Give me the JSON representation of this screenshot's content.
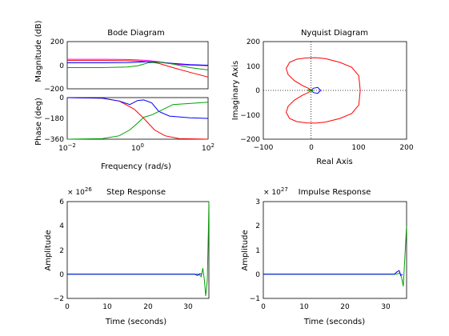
{
  "colors": {
    "red": "#ff0000",
    "green": "#00a000",
    "blue": "#0000ff",
    "magenta": "#ff00ff",
    "dark": "#000000"
  },
  "bode": {
    "title": "Bode Diagram",
    "ylabel_mag": "Magnitude (dB)",
    "ylabel_phase": "Phase (deg)",
    "xlabel": "Frequency  (rad/s)",
    "mag_ticks": [
      "200",
      "0",
      "−200"
    ],
    "phase_ticks": [
      "0",
      "−180",
      "−360"
    ],
    "x_ticks": [
      {
        "base": "10",
        "exp": "−2"
      },
      {
        "base": "10",
        "exp": "0"
      },
      {
        "base": "10",
        "exp": "2"
      }
    ]
  },
  "nyquist": {
    "title": "Nyquist Diagram",
    "xlabel": "Real Axis",
    "ylabel": "Imaginary Axis",
    "x_ticks": [
      "−100",
      "0",
      "100",
      "200"
    ],
    "y_ticks": [
      "200",
      "100",
      "0",
      "−100",
      "−200"
    ]
  },
  "step": {
    "title": "Step Response",
    "xlabel": "Time (seconds)",
    "ylabel": "Amplitude",
    "scale_base": "× 10",
    "scale_exp": "26",
    "x_ticks": [
      "0",
      "10",
      "20",
      "30"
    ],
    "y_ticks": [
      "6",
      "4",
      "2",
      "0",
      "−2"
    ]
  },
  "impulse": {
    "title": "Impulse Response",
    "xlabel": "Time (seconds)",
    "ylabel": "Amplitude",
    "scale_base": "× 10",
    "scale_exp": "27",
    "x_ticks": [
      "0",
      "10",
      "20",
      "30"
    ],
    "y_ticks": [
      "3",
      "2",
      "1",
      "0",
      "−1"
    ]
  },
  "chart_data": [
    {
      "type": "line",
      "title": "Bode Diagram",
      "xlabel": "Frequency  (rad/s)",
      "ylabel": "Magnitude (dB)",
      "xscale": "log",
      "xlim": [
        0.01,
        100
      ],
      "ylim": [
        -200,
        200
      ],
      "series": [
        {
          "color": "red",
          "x": [
            0.01,
            0.1,
            0.5,
            1,
            2,
            4,
            10,
            30,
            100
          ],
          "y": [
            40,
            40,
            38,
            35,
            30,
            15,
            -20,
            -60,
            -100
          ]
        },
        {
          "color": "magenta",
          "x": [
            0.01,
            0.1,
            0.5,
            1,
            2,
            4,
            10,
            30,
            100
          ],
          "y": [
            50,
            50,
            48,
            45,
            40,
            30,
            10,
            0,
            -5
          ]
        },
        {
          "color": "blue",
          "x": [
            0.01,
            0.1,
            0.5,
            1,
            2,
            4,
            10,
            30,
            100
          ],
          "y": [
            20,
            20,
            22,
            25,
            30,
            25,
            15,
            5,
            0
          ]
        },
        {
          "color": "green",
          "x": [
            0.01,
            0.1,
            0.5,
            1,
            2,
            4,
            10,
            30,
            100
          ],
          "y": [
            -20,
            -20,
            -15,
            -5,
            20,
            25,
            10,
            -20,
            -40
          ]
        }
      ]
    },
    {
      "type": "line",
      "title": "",
      "xlabel": "Frequency  (rad/s)",
      "ylabel": "Phase (deg)",
      "xscale": "log",
      "xlim": [
        0.01,
        100
      ],
      "ylim": [
        -360,
        0
      ],
      "series": [
        {
          "color": "red",
          "x": [
            0.01,
            0.1,
            0.3,
            0.8,
            1.5,
            3,
            6,
            15,
            100
          ],
          "y": [
            0,
            -5,
            -30,
            -100,
            -180,
            -280,
            -330,
            -355,
            -360
          ]
        },
        {
          "color": "blue",
          "x": [
            0.01,
            0.1,
            0.3,
            0.6,
            1,
            1.5,
            2.5,
            4,
            8,
            30,
            100
          ],
          "y": [
            0,
            -5,
            -30,
            -60,
            -25,
            -20,
            -45,
            -120,
            -160,
            -175,
            -180
          ]
        },
        {
          "color": "green",
          "x": [
            0.01,
            0.1,
            0.3,
            0.6,
            1,
            1.5,
            2.5,
            4,
            10,
            100
          ],
          "y": [
            -360,
            -355,
            -330,
            -280,
            -220,
            -170,
            -150,
            -120,
            -60,
            -40
          ]
        }
      ]
    },
    {
      "type": "line",
      "title": "Nyquist Diagram",
      "xlabel": "Real Axis",
      "ylabel": "Imaginary Axis",
      "xlim": [
        -100,
        200
      ],
      "ylim": [
        -200,
        200
      ],
      "grid": "zero-lines dotted",
      "series": [
        {
          "color": "red",
          "x": [
            0,
            -5,
            -18,
            -35,
            -48,
            -52,
            -45,
            -30,
            -10,
            10,
            30,
            60,
            85,
            100,
            103,
            100,
            85,
            60,
            30,
            10,
            -10,
            -30,
            -45,
            -52,
            -48,
            -35,
            -18,
            -5,
            0
          ],
          "y": [
            0,
            8,
            20,
            40,
            65,
            90,
            115,
            128,
            133,
            134,
            130,
            115,
            95,
            60,
            0,
            -60,
            -95,
            -115,
            -130,
            -134,
            -133,
            -128,
            -115,
            -90,
            -65,
            -40,
            -20,
            -8,
            0
          ]
        },
        {
          "color": "blue",
          "x": [
            0,
            5,
            14,
            20,
            14,
            5,
            0
          ],
          "y": [
            0,
            9,
            12,
            0,
            -12,
            -9,
            0
          ]
        },
        {
          "color": "green",
          "x": [
            -8,
            -2,
            4,
            2,
            -2,
            -8
          ],
          "y": [
            0,
            5,
            0,
            -5,
            0,
            0
          ]
        }
      ]
    },
    {
      "type": "line",
      "title": "Step Response",
      "xlabel": "Time (seconds)",
      "ylabel": "Amplitude",
      "scale": "1e26",
      "xlim": [
        0,
        35
      ],
      "ylim": [
        -2,
        6
      ],
      "series": [
        {
          "color": "green",
          "x": [
            0,
            31.8,
            32.5,
            33.1,
            33.5,
            33.9,
            34.2,
            34.6,
            34.9,
            35,
            35
          ],
          "y": [
            0,
            0,
            0,
            -0.2,
            0.5,
            -0.5,
            -1.8,
            -0.5,
            4,
            6,
            6
          ]
        },
        {
          "color": "blue",
          "x": [
            0,
            31.5,
            32.2,
            32.8,
            33.3
          ],
          "y": [
            0,
            0,
            -0.1,
            0.05,
            0
          ]
        }
      ]
    },
    {
      "type": "line",
      "title": "Impulse Response",
      "xlabel": "Time (seconds)",
      "ylabel": "Amplitude",
      "scale": "1e27",
      "xlim": [
        0,
        35
      ],
      "ylim": [
        -1,
        3
      ],
      "series": [
        {
          "color": "green",
          "x": [
            0,
            32.5,
            33.3,
            33.8,
            34.2,
            34.6,
            35
          ],
          "y": [
            0,
            0,
            0.05,
            -0.15,
            -0.5,
            0.8,
            2.0
          ]
        },
        {
          "color": "blue",
          "x": [
            0,
            32.0,
            32.7,
            33.2,
            33.6,
            34.0
          ],
          "y": [
            0,
            0,
            0.1,
            0.15,
            -0.05,
            0
          ]
        }
      ]
    }
  ]
}
